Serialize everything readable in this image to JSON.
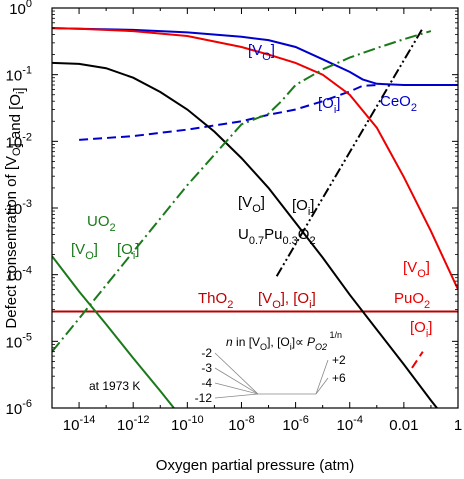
{
  "chart_data": {
    "type": "line",
    "xlabel": "Oxygen partial pressure (atm)",
    "ylabel": "Defect consentration of [V_O] and [O_i]",
    "x_scale": "log",
    "y_scale": "log",
    "xlim": [
      1e-15,
      1
    ],
    "ylim": [
      1e-06,
      1
    ],
    "x_ticks": [
      {
        "value": 1e-14,
        "base": "10",
        "exp": "-14"
      },
      {
        "value": 1e-12,
        "base": "10",
        "exp": "-12"
      },
      {
        "value": 1e-10,
        "base": "10",
        "exp": "-10"
      },
      {
        "value": 1e-08,
        "base": "10",
        "exp": "-8"
      },
      {
        "value": 1e-06,
        "base": "10",
        "exp": "-6"
      },
      {
        "value": 0.0001,
        "base": "10",
        "exp": "-4"
      },
      {
        "value": 0.01,
        "base": "0.01",
        "exp": ""
      },
      {
        "value": 1,
        "base": "1",
        "exp": ""
      }
    ],
    "y_ticks": [
      {
        "value": 1,
        "base": "10",
        "exp": "0"
      },
      {
        "value": 0.1,
        "base": "10",
        "exp": "-1"
      },
      {
        "value": 0.01,
        "base": "10",
        "exp": "-2"
      },
      {
        "value": 0.001,
        "base": "10",
        "exp": "-3"
      },
      {
        "value": 0.0001,
        "base": "10",
        "exp": "-4"
      },
      {
        "value": 1e-05,
        "base": "10",
        "exp": "-5"
      },
      {
        "value": 1e-06,
        "base": "10",
        "exp": "-6"
      }
    ],
    "grid": false,
    "series": [
      {
        "name": "CeO2 [VO]",
        "color": "#0000cc",
        "style": "solid",
        "points": [
          [
            1e-15,
            0.5
          ],
          [
            1e-14,
            0.49
          ],
          [
            1e-12,
            0.47
          ],
          [
            1e-10,
            0.43
          ],
          [
            1e-08,
            0.37
          ],
          [
            1e-07,
            0.33
          ],
          [
            1e-06,
            0.26
          ],
          [
            1e-05,
            0.17
          ],
          [
            0.0001,
            0.11
          ],
          [
            0.0003,
            0.085
          ],
          [
            0.001,
            0.073
          ],
          [
            0.01,
            0.07
          ],
          [
            1,
            0.07
          ]
        ]
      },
      {
        "name": "CeO2 [Oi]",
        "color": "#0000cc",
        "style": "dashed",
        "points": [
          [
            1e-14,
            0.0105
          ],
          [
            1e-12,
            0.012
          ],
          [
            1e-10,
            0.015
          ],
          [
            1e-08,
            0.02
          ],
          [
            1e-07,
            0.025
          ],
          [
            1e-06,
            0.03
          ],
          [
            1e-05,
            0.04
          ],
          [
            0.0001,
            0.056
          ],
          [
            0.0003,
            0.068
          ],
          [
            0.001,
            0.07
          ]
        ]
      },
      {
        "name": "PuO2 [VO]",
        "color": "#ee0000",
        "style": "solid",
        "points": [
          [
            1e-15,
            0.5
          ],
          [
            1e-14,
            0.49
          ],
          [
            1e-12,
            0.45
          ],
          [
            1e-10,
            0.38
          ],
          [
            1e-08,
            0.26
          ],
          [
            1e-07,
            0.2
          ],
          [
            1e-06,
            0.15
          ],
          [
            1e-05,
            0.1
          ],
          [
            0.0001,
            0.05
          ],
          [
            0.001,
            0.016
          ],
          [
            0.01,
            0.0029
          ],
          [
            0.1,
            0.00045
          ],
          [
            1,
            6e-05
          ]
        ]
      },
      {
        "name": "PuO2 [Oi]",
        "color": "#ee0000",
        "style": "dashed",
        "points": [
          [
            0.02,
            4e-06
          ],
          [
            0.05,
            7e-06
          ]
        ]
      },
      {
        "name": "ThO2 [VO], [Oi]",
        "color": "#bb0000",
        "style": "solid",
        "points": [
          [
            1e-15,
            2.8e-05
          ],
          [
            1,
            2.8e-05
          ]
        ]
      },
      {
        "name": "U0.7Pu0.3O2 [VO]",
        "color": "#000000",
        "style": "solid",
        "points": [
          [
            1e-15,
            0.15
          ],
          [
            1e-14,
            0.145
          ],
          [
            1e-13,
            0.125
          ],
          [
            1e-12,
            0.09
          ],
          [
            1e-11,
            0.055
          ],
          [
            1e-10,
            0.03
          ],
          [
            1e-09,
            0.014
          ],
          [
            1e-08,
            0.0056
          ],
          [
            1e-07,
            0.002
          ],
          [
            1e-06,
            0.0006
          ],
          [
            1e-05,
            0.00018
          ],
          [
            0.0001,
            5e-05
          ],
          [
            0.001,
            1.5e-05
          ],
          [
            0.01,
            4.5e-06
          ],
          [
            0.1,
            1.3e-06
          ],
          [
            1,
            4e-07
          ]
        ]
      },
      {
        "name": "U0.7Pu0.3O2 [Oi]",
        "color": "#000000",
        "style": "dashdotdot",
        "points": [
          [
            2e-07,
            9.5e-05
          ],
          [
            0.05,
            0.5
          ]
        ]
      },
      {
        "name": "UO2 [VO]",
        "color": "#1a7a1a",
        "style": "solid",
        "points": [
          [
            1e-15,
            0.00019
          ],
          [
            1e-14,
            5.6e-05
          ],
          [
            1e-13,
            1.8e-05
          ],
          [
            1e-12,
            5.6e-06
          ],
          [
            1e-11,
            1.8e-06
          ],
          [
            1e-10,
            5.6e-07
          ]
        ]
      },
      {
        "name": "UO2 [Oi]",
        "color": "#1a7a1a",
        "style": "dashdot",
        "points": [
          [
            1e-15,
            7e-06
          ],
          [
            1e-14,
            2.2e-05
          ],
          [
            1e-12,
            0.00022
          ],
          [
            1e-10,
            0.0022
          ],
          [
            1e-08,
            0.018
          ],
          [
            1e-07,
            0.026
          ],
          [
            3e-07,
            0.04
          ],
          [
            1e-06,
            0.07
          ],
          [
            1e-05,
            0.12
          ],
          [
            0.0001,
            0.18
          ],
          [
            0.001,
            0.25
          ],
          [
            0.01,
            0.34
          ],
          [
            0.1,
            0.45
          ]
        ]
      }
    ],
    "annotations": [
      {
        "key": "ceo2_vo",
        "text": "[VO]",
        "color": "#0000cc"
      },
      {
        "key": "ceo2_oi",
        "text": "[Oi]",
        "color": "#0000cc"
      },
      {
        "key": "ceo2",
        "text": "CeO2",
        "color": "#0000cc"
      },
      {
        "key": "upu_vo",
        "text": "[VO]",
        "color": "#000000"
      },
      {
        "key": "upu_oi",
        "text": "[Oi]",
        "color": "#000000"
      },
      {
        "key": "upu",
        "text": "U0.7Pu0.3O2",
        "color": "#000000"
      },
      {
        "key": "uo2",
        "text": "UO2",
        "color": "#1a7a1a"
      },
      {
        "key": "uo2_vo",
        "text": "[VO]",
        "color": "#1a7a1a"
      },
      {
        "key": "uo2_oi",
        "text": "[Oi]",
        "color": "#1a7a1a"
      },
      {
        "key": "tho2",
        "text": "ThO2",
        "color": "#bb0000"
      },
      {
        "key": "tho2_def",
        "text": "[VO], [Oi]",
        "color": "#bb0000"
      },
      {
        "key": "puo2_vo",
        "text": "[VO]",
        "color": "#ee0000"
      },
      {
        "key": "puo2",
        "text": "PuO2",
        "color": "#ee0000"
      },
      {
        "key": "puo2_oi",
        "text": "[Oi]",
        "color": "#ee0000"
      },
      {
        "key": "temp",
        "text": "at 1973 K",
        "color": "#000000"
      }
    ],
    "inset_legend": {
      "left_values": [
        "-2",
        "-3",
        "-4",
        "-12"
      ],
      "right_values": [
        "+2",
        "+6"
      ],
      "formula": "n in [VO], [Oi] ∝ PO2 1/n"
    }
  }
}
